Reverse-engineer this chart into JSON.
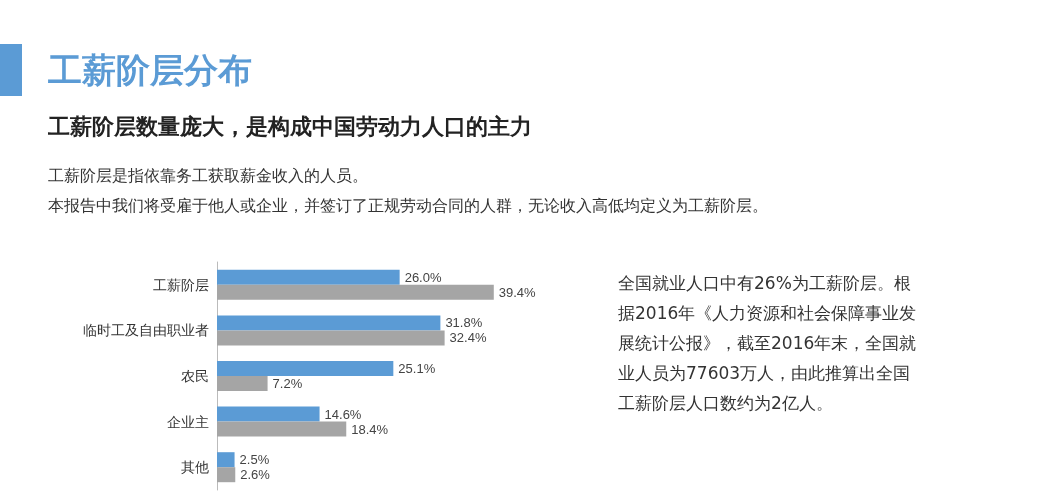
{
  "chart_data": {
    "type": "bar",
    "orientation": "horizontal",
    "title": "工薪阶层分布",
    "subtitle": "工薪阶层数量庞大，是构成中国劳动力人口的主力",
    "annotations": [
      "工薪阶层是指依靠务工获取薪金收入的人员。",
      "本报告中我们将受雇于他人或企业，并签订了正规劳动合同的人群，无论收入高低均定义为工薪阶层。",
      "全国就业人口中有26%为工薪阶层。根据2016年《人力资源和社会保障事业发展统计公报》，截至2016年末，全国就业人员为77603万人，由此推算出全国工薪阶层人口数约为2亿人。"
    ],
    "categories": [
      "工薪阶层",
      "临时工及自由职业者",
      "农民",
      "企业主",
      "其他"
    ],
    "series": [
      {
        "color": "#5b9bd5",
        "values": [
          26.0,
          31.8,
          25.1,
          14.6,
          2.5
        ],
        "value_labels": [
          "26.0%",
          "31.8%",
          "25.1%",
          "14.6%",
          "2.5%"
        ]
      },
      {
        "color": "#a5a5a5",
        "values": [
          39.4,
          32.4,
          7.2,
          18.4,
          2.6
        ],
        "value_labels": [
          "39.4%",
          "32.4%",
          "7.2%",
          "18.4%",
          "2.6%"
        ]
      }
    ]
  }
}
